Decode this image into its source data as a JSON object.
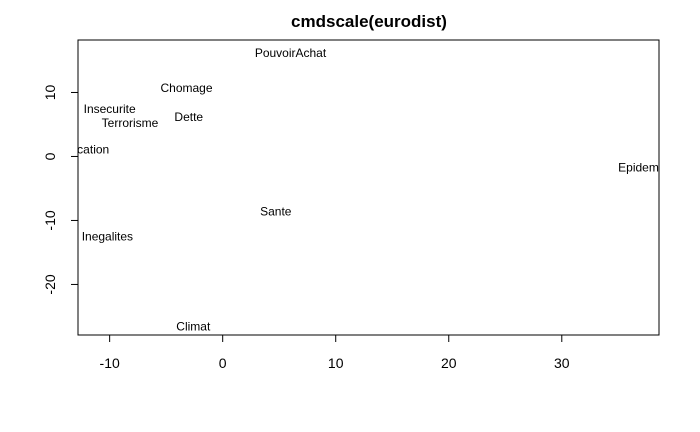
{
  "chart_data": {
    "type": "scatter",
    "title": "cmdscale(eurodist)",
    "xlabel": "",
    "ylabel": "",
    "xlim": [
      -12.8,
      38.6
    ],
    "ylim": [
      -27.9,
      18.2
    ],
    "xticks": [
      -10,
      0,
      10,
      20,
      30
    ],
    "yticks": [
      -20,
      -10,
      0,
      10
    ],
    "grid": false,
    "points": [
      {
        "label": "PouvoirAchat",
        "x": 6.0,
        "y": 16.2
      },
      {
        "label": "Chomage",
        "x": -3.2,
        "y": 10.7
      },
      {
        "label": "Insecurite",
        "x": -10.0,
        "y": 7.4
      },
      {
        "label": "Terrorisme",
        "x": -8.2,
        "y": 5.2
      },
      {
        "label": "Dette",
        "x": -3.0,
        "y": 6.2
      },
      {
        "label": "Education",
        "x": -12.4,
        "y": 1.1
      },
      {
        "label": "Epidemie",
        "x": 37.2,
        "y": -1.7
      },
      {
        "label": "Sante",
        "x": 4.7,
        "y": -8.6
      },
      {
        "label": "Inegalites",
        "x": -10.2,
        "y": -12.5
      },
      {
        "label": "Climat",
        "x": -2.6,
        "y": -26.6
      }
    ]
  }
}
